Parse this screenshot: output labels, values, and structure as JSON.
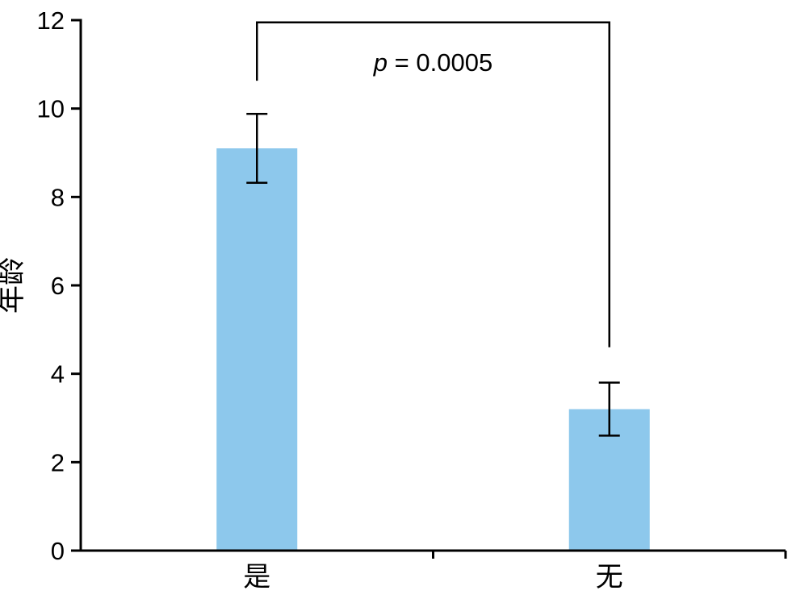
{
  "chart_data": {
    "type": "bar",
    "title": "",
    "xlabel": "",
    "ylabel": "年龄",
    "categories": [
      "是",
      "无"
    ],
    "values": [
      9.1,
      3.2
    ],
    "errors": [
      0.78,
      0.6
    ],
    "ylim": [
      0,
      12
    ],
    "yticks": [
      0,
      2,
      4,
      6,
      8,
      10,
      12
    ],
    "grid": false,
    "legend": "none",
    "bar_color": "#8dc8ec",
    "axis_color": "#000000",
    "annotation": {
      "text": "p = 0.0005",
      "italic": "p",
      "rest": " = 0.0005"
    },
    "significance": {
      "left_y": 10.63,
      "top_y": 11.95,
      "right_y": 4.6,
      "label_y": 10.85
    }
  }
}
